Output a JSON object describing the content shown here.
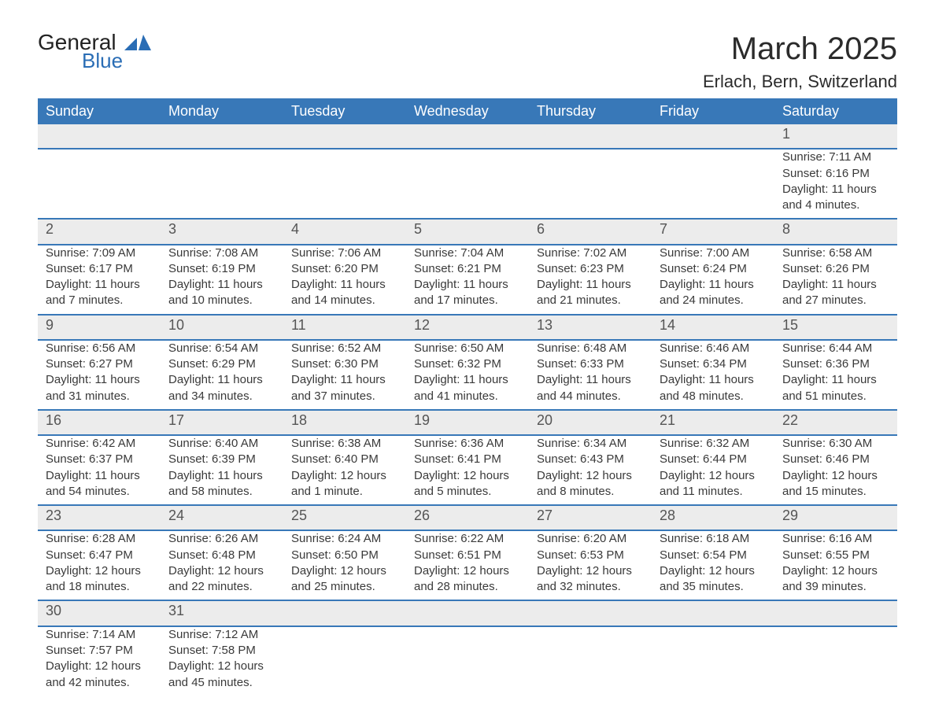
{
  "logo": {
    "text_top": "General",
    "text_bottom": "Blue",
    "mark_color": "#2a6db5",
    "text_top_color": "#222222",
    "text_bottom_color": "#2a6db5"
  },
  "title": "March 2025",
  "location": "Erlach, Bern, Switzerland",
  "columns": [
    "Sunday",
    "Monday",
    "Tuesday",
    "Wednesday",
    "Thursday",
    "Friday",
    "Saturday"
  ],
  "styling": {
    "header_bg": "#3878b8",
    "header_text_color": "#ffffff",
    "daynum_bg": "#ececec",
    "row_divider_color": "#3878b8",
    "body_text_color": "#3a3a3a",
    "page_bg": "#ffffff",
    "title_fontsize": 40,
    "location_fontsize": 22,
    "header_fontsize": 18,
    "daynum_fontsize": 18,
    "detail_fontsize": 15
  },
  "weeks": [
    [
      null,
      null,
      null,
      null,
      null,
      null,
      {
        "n": "1",
        "sunrise": "7:11 AM",
        "sunset": "6:16 PM",
        "daylight": "11 hours and 4 minutes."
      }
    ],
    [
      {
        "n": "2",
        "sunrise": "7:09 AM",
        "sunset": "6:17 PM",
        "daylight": "11 hours and 7 minutes."
      },
      {
        "n": "3",
        "sunrise": "7:08 AM",
        "sunset": "6:19 PM",
        "daylight": "11 hours and 10 minutes."
      },
      {
        "n": "4",
        "sunrise": "7:06 AM",
        "sunset": "6:20 PM",
        "daylight": "11 hours and 14 minutes."
      },
      {
        "n": "5",
        "sunrise": "7:04 AM",
        "sunset": "6:21 PM",
        "daylight": "11 hours and 17 minutes."
      },
      {
        "n": "6",
        "sunrise": "7:02 AM",
        "sunset": "6:23 PM",
        "daylight": "11 hours and 21 minutes."
      },
      {
        "n": "7",
        "sunrise": "7:00 AM",
        "sunset": "6:24 PM",
        "daylight": "11 hours and 24 minutes."
      },
      {
        "n": "8",
        "sunrise": "6:58 AM",
        "sunset": "6:26 PM",
        "daylight": "11 hours and 27 minutes."
      }
    ],
    [
      {
        "n": "9",
        "sunrise": "6:56 AM",
        "sunset": "6:27 PM",
        "daylight": "11 hours and 31 minutes."
      },
      {
        "n": "10",
        "sunrise": "6:54 AM",
        "sunset": "6:29 PM",
        "daylight": "11 hours and 34 minutes."
      },
      {
        "n": "11",
        "sunrise": "6:52 AM",
        "sunset": "6:30 PM",
        "daylight": "11 hours and 37 minutes."
      },
      {
        "n": "12",
        "sunrise": "6:50 AM",
        "sunset": "6:32 PM",
        "daylight": "11 hours and 41 minutes."
      },
      {
        "n": "13",
        "sunrise": "6:48 AM",
        "sunset": "6:33 PM",
        "daylight": "11 hours and 44 minutes."
      },
      {
        "n": "14",
        "sunrise": "6:46 AM",
        "sunset": "6:34 PM",
        "daylight": "11 hours and 48 minutes."
      },
      {
        "n": "15",
        "sunrise": "6:44 AM",
        "sunset": "6:36 PM",
        "daylight": "11 hours and 51 minutes."
      }
    ],
    [
      {
        "n": "16",
        "sunrise": "6:42 AM",
        "sunset": "6:37 PM",
        "daylight": "11 hours and 54 minutes."
      },
      {
        "n": "17",
        "sunrise": "6:40 AM",
        "sunset": "6:39 PM",
        "daylight": "11 hours and 58 minutes."
      },
      {
        "n": "18",
        "sunrise": "6:38 AM",
        "sunset": "6:40 PM",
        "daylight": "12 hours and 1 minute."
      },
      {
        "n": "19",
        "sunrise": "6:36 AM",
        "sunset": "6:41 PM",
        "daylight": "12 hours and 5 minutes."
      },
      {
        "n": "20",
        "sunrise": "6:34 AM",
        "sunset": "6:43 PM",
        "daylight": "12 hours and 8 minutes."
      },
      {
        "n": "21",
        "sunrise": "6:32 AM",
        "sunset": "6:44 PM",
        "daylight": "12 hours and 11 minutes."
      },
      {
        "n": "22",
        "sunrise": "6:30 AM",
        "sunset": "6:46 PM",
        "daylight": "12 hours and 15 minutes."
      }
    ],
    [
      {
        "n": "23",
        "sunrise": "6:28 AM",
        "sunset": "6:47 PM",
        "daylight": "12 hours and 18 minutes."
      },
      {
        "n": "24",
        "sunrise": "6:26 AM",
        "sunset": "6:48 PM",
        "daylight": "12 hours and 22 minutes."
      },
      {
        "n": "25",
        "sunrise": "6:24 AM",
        "sunset": "6:50 PM",
        "daylight": "12 hours and 25 minutes."
      },
      {
        "n": "26",
        "sunrise": "6:22 AM",
        "sunset": "6:51 PM",
        "daylight": "12 hours and 28 minutes."
      },
      {
        "n": "27",
        "sunrise": "6:20 AM",
        "sunset": "6:53 PM",
        "daylight": "12 hours and 32 minutes."
      },
      {
        "n": "28",
        "sunrise": "6:18 AM",
        "sunset": "6:54 PM",
        "daylight": "12 hours and 35 minutes."
      },
      {
        "n": "29",
        "sunrise": "6:16 AM",
        "sunset": "6:55 PM",
        "daylight": "12 hours and 39 minutes."
      }
    ],
    [
      {
        "n": "30",
        "sunrise": "7:14 AM",
        "sunset": "7:57 PM",
        "daylight": "12 hours and 42 minutes."
      },
      {
        "n": "31",
        "sunrise": "7:12 AM",
        "sunset": "7:58 PM",
        "daylight": "12 hours and 45 minutes."
      },
      null,
      null,
      null,
      null,
      null
    ]
  ],
  "labels": {
    "sunrise": "Sunrise: ",
    "sunset": "Sunset: ",
    "daylight": "Daylight: "
  }
}
